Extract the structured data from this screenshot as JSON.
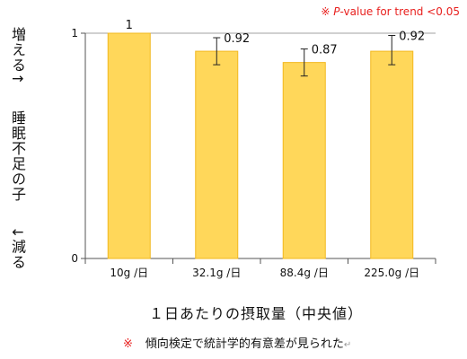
{
  "note_top": {
    "mark": "※",
    "p": "P",
    "rest": "-value for trend <0.05"
  },
  "ylabel": {
    "top": "増える↑",
    "middle": "睡眠不足の子",
    "bottom": "↓減る"
  },
  "xlabel": "１日あたりの摂取量（中央値）",
  "footnote": {
    "mark": "※",
    "text": "傾向検定で統計学的有意差が見られた",
    "ret": "↵"
  },
  "chart_data": {
    "type": "bar",
    "categories": [
      "10g /日",
      "32.1g /日",
      "88.4g /日",
      "225.0g /日"
    ],
    "values": [
      1,
      0.92,
      0.87,
      0.92
    ],
    "data_labels": [
      "1",
      "0.92",
      "0.87",
      "0.92"
    ],
    "error_low": [
      null,
      0.86,
      0.81,
      0.86
    ],
    "error_high": [
      null,
      0.98,
      0.93,
      0.99
    ],
    "ylim": [
      0,
      1
    ],
    "yticks": [
      0,
      1
    ],
    "title": "",
    "bar_color": "#ffd75a",
    "bar_edge_color": "#f2b81e",
    "gridline_color": "#a0a0a0"
  }
}
